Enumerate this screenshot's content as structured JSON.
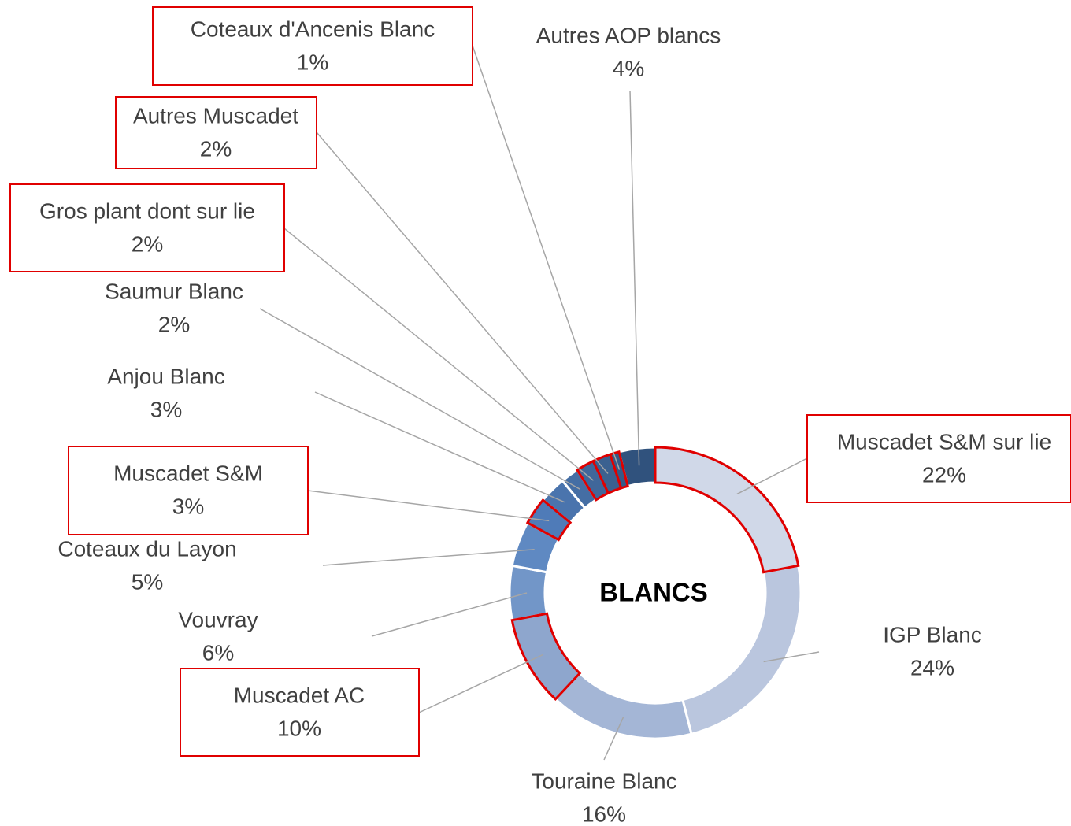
{
  "chart_data": {
    "type": "donut",
    "center_label": "BLANCS",
    "categories": [
      "Muscadet S&M sur lie",
      "IGP Blanc",
      "Touraine Blanc",
      "Muscadet AC",
      "Vouvray",
      "Coteaux du Layon",
      "Muscadet S&M",
      "Anjou Blanc",
      "Saumur Blanc",
      "Gros plant dont sur lie",
      "Autres Muscadet",
      "Coteaux d'Ancenis Blanc",
      "Autres AOP blancs"
    ],
    "values": [
      22,
      24,
      16,
      10,
      6,
      5,
      3,
      3,
      2,
      2,
      2,
      1,
      4
    ],
    "value_labels": [
      "22%",
      "24%",
      "16%",
      "10%",
      "6%",
      "5%",
      "3%",
      "3%",
      "2%",
      "2%",
      "2%",
      "1%",
      "4%"
    ],
    "colors": [
      "#d0d8e8",
      "#bac6de",
      "#a4b6d6",
      "#8ea6cd",
      "#7296c8",
      "#5f89c2",
      "#4f7bb8",
      "#4a74ad",
      "#456ea4",
      "#40679a",
      "#3b6190",
      "#365a87",
      "#30527d"
    ],
    "highlighted": [
      true,
      false,
      false,
      true,
      false,
      false,
      true,
      false,
      false,
      true,
      true,
      true,
      false
    ],
    "highlight_color": "#e00000"
  }
}
